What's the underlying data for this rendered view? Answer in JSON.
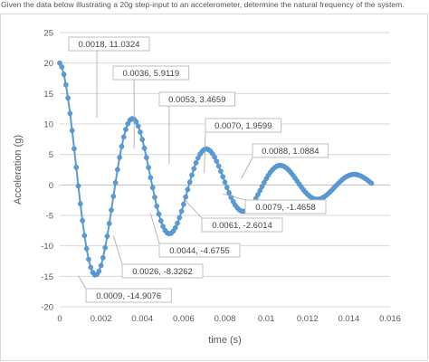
{
  "question": "Given the data below illustrating a 20g step-input to an accelerometer, determine the natural frequency of the system.",
  "colors": {
    "series": "#5b9bd5",
    "marker_edge": "#4a88c4",
    "grid": "#d9d9d9",
    "leader": "#a6a6a6"
  },
  "chart_data": {
    "type": "scatter",
    "title": "",
    "xlabel": "time (s)",
    "ylabel": "Acceleration (g)",
    "xlim": [
      0,
      0.016
    ],
    "ylim": [
      -20,
      25
    ],
    "xticks": [
      0,
      0.002,
      0.004,
      0.006,
      0.008,
      0.01,
      0.012,
      0.014,
      0.016
    ],
    "xtick_labels": [
      "0",
      "0.002",
      "0.004",
      "0.006",
      "0.008",
      "0.01",
      "0.012",
      "0.014",
      "0.016"
    ],
    "yticks": [
      -20,
      -15,
      -10,
      -5,
      0,
      5,
      10,
      15,
      20,
      25
    ],
    "ytick_labels": [
      "-20",
      "-15",
      "-10",
      "-5",
      "0",
      "5",
      "10",
      "15",
      "20",
      "25"
    ],
    "grid": "horizontal",
    "legend": "none",
    "lines_with_markers": true,
    "series": [
      {
        "x_end": 0.0151,
        "point_count": 152
      }
    ],
    "annotations": [
      {
        "x": 0.0018,
        "y": 11.0324,
        "text": "0.0018, 11.0324"
      },
      {
        "x": 0.0036,
        "y": 5.9119,
        "text": "0.0036, 5.9119"
      },
      {
        "x": 0.0053,
        "y": 3.4659,
        "text": "0.0053, 3.4659"
      },
      {
        "x": 0.007,
        "y": 1.9599,
        "text": "0.0070, 1.9599"
      },
      {
        "x": 0.0088,
        "y": 1.0884,
        "text": "0.0088, 1.0884"
      },
      {
        "x": 0.0079,
        "y": -1.4658,
        "text": "0.0079, -1.4658"
      },
      {
        "x": 0.0061,
        "y": -2.6014,
        "text": "0.0061, -2.6014"
      },
      {
        "x": 0.0044,
        "y": -4.6755,
        "text": "0.0044, -4.6755"
      },
      {
        "x": 0.0026,
        "y": -8.3262,
        "text": "0.0026, -8.3262"
      },
      {
        "x": 0.0009,
        "y": -14.9076,
        "text": "0.0009, -14.9076"
      }
    ]
  }
}
